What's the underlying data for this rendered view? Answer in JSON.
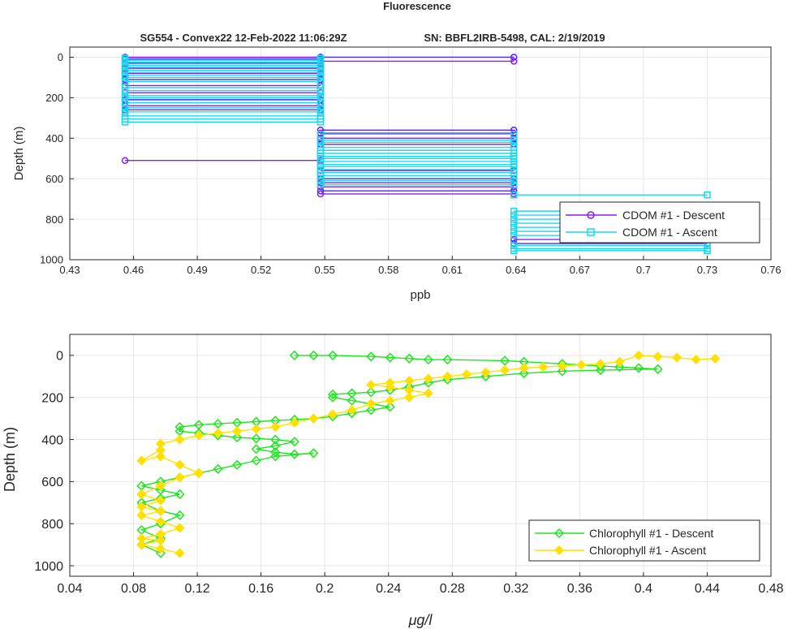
{
  "figure": {
    "title": "Fluorescence",
    "subtitle_left": "SG554 - Convex22 12-Feb-2022 11:06:29Z",
    "subtitle_right": "SN: BBFL2IRB-5498, CAL: 2/19/2019"
  },
  "colors": {
    "cdom_descent": "#8a1ee6",
    "cdom_descent_dark": "#4b26ff",
    "cdom_ascent": "#1ad7f0",
    "chl_descent": "#1ee61e",
    "chl_ascent": "#ffe100",
    "grid": "#e6e6e6",
    "axis": "#262626"
  },
  "chart_data": [
    {
      "type": "line",
      "xlabel": "ppb",
      "ylabel": "Depth (m)",
      "xlim": [
        0.43,
        0.76
      ],
      "ylim": [
        1000,
        -50
      ],
      "y_reversed": true,
      "grid": true,
      "xticks": [
        0.43,
        0.46,
        0.49,
        0.52,
        0.55,
        0.58,
        0.61,
        0.64,
        0.67,
        0.7,
        0.73,
        0.76
      ],
      "xtick_labels": [
        "0.43",
        "0.46",
        "0.49",
        "0.52",
        "0.55",
        "0.58",
        "0.61",
        "0.64",
        "0.67",
        "0.7",
        "0.73",
        "0.76"
      ],
      "yticks": [
        0,
        200,
        400,
        600,
        800,
        1000
      ],
      "ytick_labels": [
        "0",
        "200",
        "400",
        "600",
        "800",
        "1000"
      ],
      "legend_position": "lower-right",
      "series": [
        {
          "name": "CDOM #1 - Descent",
          "marker": "circle",
          "color_key": "cdom_descent",
          "segments": [
            [
              0.456,
              0,
              0.548,
              0
            ],
            [
              0.548,
              0,
              0.639,
              0
            ],
            [
              0.456,
              10,
              0.548,
              10
            ],
            [
              0.548,
              20,
              0.639,
              20
            ],
            [
              0.456,
              30,
              0.548,
              30
            ],
            [
              0.456,
              55,
              0.548,
              55
            ],
            [
              0.456,
              80,
              0.548,
              80
            ],
            [
              0.456,
              110,
              0.548,
              110
            ],
            [
              0.456,
              140,
              0.548,
              140
            ],
            [
              0.456,
              175,
              0.548,
              175
            ],
            [
              0.456,
              210,
              0.548,
              210
            ],
            [
              0.456,
              240,
              0.548,
              240
            ],
            [
              0.456,
              260,
              0.548,
              260
            ],
            [
              0.548,
              360,
              0.639,
              360
            ],
            [
              0.548,
              375,
              0.639,
              375
            ],
            [
              0.548,
              400,
              0.639,
              400
            ],
            [
              0.548,
              430,
              0.639,
              430
            ],
            [
              0.456,
              510,
              0.548,
              510
            ],
            [
              0.548,
              560,
              0.639,
              560
            ],
            [
              0.548,
              600,
              0.639,
              600
            ],
            [
              0.548,
              620,
              0.639,
              620
            ],
            [
              0.548,
              640,
              0.639,
              640
            ],
            [
              0.548,
              660,
              0.639,
              660
            ],
            [
              0.548,
              675,
              0.639,
              675
            ],
            [
              0.639,
              900,
              0.73,
              900
            ],
            [
              0.639,
              920,
              0.73,
              920
            ]
          ]
        },
        {
          "name": "CDOM #1 - Ascent",
          "marker": "square",
          "color_key": "cdom_ascent",
          "segments": [
            [
              0.456,
              5,
              0.548,
              5
            ],
            [
              0.456,
              15,
              0.548,
              15
            ],
            [
              0.456,
              25,
              0.548,
              25
            ],
            [
              0.456,
              40,
              0.548,
              40
            ],
            [
              0.456,
              50,
              0.548,
              50
            ],
            [
              0.456,
              65,
              0.548,
              65
            ],
            [
              0.456,
              75,
              0.548,
              75
            ],
            [
              0.456,
              90,
              0.548,
              90
            ],
            [
              0.456,
              100,
              0.548,
              100
            ],
            [
              0.456,
              120,
              0.548,
              120
            ],
            [
              0.456,
              150,
              0.548,
              150
            ],
            [
              0.456,
              165,
              0.548,
              165
            ],
            [
              0.456,
              190,
              0.548,
              190
            ],
            [
              0.456,
              200,
              0.548,
              200
            ],
            [
              0.456,
              225,
              0.548,
              225
            ],
            [
              0.456,
              250,
              0.548,
              250
            ],
            [
              0.456,
              270,
              0.548,
              270
            ],
            [
              0.456,
              290,
              0.548,
              290
            ],
            [
              0.456,
              305,
              0.548,
              305
            ],
            [
              0.456,
              320,
              0.548,
              320
            ],
            [
              0.548,
              380,
              0.639,
              380
            ],
            [
              0.548,
              410,
              0.639,
              410
            ],
            [
              0.548,
              420,
              0.639,
              420
            ],
            [
              0.548,
              445,
              0.639,
              445
            ],
            [
              0.548,
              460,
              0.639,
              460
            ],
            [
              0.548,
              475,
              0.639,
              475
            ],
            [
              0.548,
              490,
              0.639,
              490
            ],
            [
              0.548,
              500,
              0.639,
              500
            ],
            [
              0.548,
              515,
              0.639,
              515
            ],
            [
              0.548,
              530,
              0.639,
              530
            ],
            [
              0.548,
              540,
              0.639,
              540
            ],
            [
              0.548,
              555,
              0.639,
              555
            ],
            [
              0.548,
              570,
              0.639,
              570
            ],
            [
              0.548,
              585,
              0.639,
              585
            ],
            [
              0.548,
              610,
              0.639,
              610
            ],
            [
              0.548,
              630,
              0.639,
              630
            ],
            [
              0.639,
              680,
              0.73,
              680
            ],
            [
              0.639,
              760,
              0.73,
              760
            ],
            [
              0.639,
              780,
              0.73,
              780
            ],
            [
              0.639,
              800,
              0.73,
              800
            ],
            [
              0.639,
              820,
              0.73,
              820
            ],
            [
              0.639,
              840,
              0.73,
              840
            ],
            [
              0.639,
              860,
              0.73,
              860
            ],
            [
              0.639,
              880,
              0.73,
              880
            ],
            [
              0.639,
              930,
              0.73,
              930
            ],
            [
              0.639,
              945,
              0.73,
              945
            ],
            [
              0.639,
              955,
              0.73,
              955
            ]
          ]
        }
      ]
    },
    {
      "type": "line",
      "xlabel": "μg/l",
      "ylabel": "Depth (m)",
      "xlim": [
        0.04,
        0.48
      ],
      "ylim": [
        1050,
        -100
      ],
      "y_reversed": true,
      "grid": true,
      "xticks": [
        0.04,
        0.08,
        0.12,
        0.16,
        0.2,
        0.24,
        0.28,
        0.32,
        0.36,
        0.4,
        0.44,
        0.48
      ],
      "xtick_labels": [
        "0.04",
        "0.08",
        "0.12",
        "0.16",
        "0.2",
        "0.24",
        "0.28",
        "0.32",
        "0.36",
        "0.4",
        "0.44",
        "0.48"
      ],
      "yticks": [
        0,
        200,
        400,
        600,
        800,
        1000
      ],
      "ytick_labels": [
        "0",
        "200",
        "400",
        "600",
        "800",
        "1000"
      ],
      "legend_position": "lower-right",
      "series": [
        {
          "name": "Chlorophyll #1 - Descent",
          "marker": "diamond",
          "color_key": "chl_descent",
          "x": [
            0.181,
            0.193,
            0.205,
            0.229,
            0.241,
            0.253,
            0.265,
            0.277,
            0.313,
            0.325,
            0.349,
            0.373,
            0.385,
            0.397,
            0.409,
            0.373,
            0.349,
            0.325,
            0.301,
            0.277,
            0.265,
            0.253,
            0.241,
            0.229,
            0.217,
            0.205,
            0.205,
            0.217,
            0.229,
            0.241,
            0.229,
            0.217,
            0.205,
            0.193,
            0.181,
            0.169,
            0.157,
            0.145,
            0.133,
            0.121,
            0.109,
            0.109,
            0.121,
            0.133,
            0.145,
            0.157,
            0.169,
            0.181,
            0.169,
            0.157,
            0.169,
            0.181,
            0.193,
            0.169,
            0.157,
            0.145,
            0.133,
            0.121,
            0.109,
            0.097,
            0.085,
            0.097,
            0.109,
            0.097,
            0.085,
            0.097,
            0.109,
            0.097,
            0.085,
            0.097,
            0.085,
            0.097
          ],
          "y": [
            0,
            0,
            0,
            5,
            10,
            15,
            20,
            20,
            25,
            30,
            40,
            50,
            55,
            60,
            65,
            70,
            75,
            85,
            100,
            115,
            130,
            150,
            165,
            175,
            180,
            185,
            200,
            215,
            230,
            245,
            260,
            275,
            290,
            300,
            305,
            310,
            315,
            320,
            325,
            330,
            340,
            360,
            370,
            380,
            390,
            395,
            400,
            410,
            430,
            445,
            460,
            470,
            465,
            480,
            500,
            520,
            540,
            560,
            580,
            600,
            620,
            640,
            660,
            680,
            700,
            740,
            760,
            800,
            830,
            870,
            900,
            940
          ]
        },
        {
          "name": "Chlorophyll #1 - Ascent",
          "marker": "filled-diamond",
          "color_key": "chl_ascent",
          "x": [
            0.445,
            0.433,
            0.421,
            0.409,
            0.397,
            0.385,
            0.373,
            0.361,
            0.349,
            0.337,
            0.325,
            0.313,
            0.301,
            0.289,
            0.277,
            0.265,
            0.253,
            0.241,
            0.229,
            0.241,
            0.253,
            0.265,
            0.253,
            0.241,
            0.229,
            0.217,
            0.205,
            0.193,
            0.181,
            0.169,
            0.157,
            0.145,
            0.133,
            0.121,
            0.109,
            0.097,
            0.097,
            0.085,
            0.097,
            0.109,
            0.121,
            0.109,
            0.097,
            0.085,
            0.097,
            0.085,
            0.097,
            0.085,
            0.097,
            0.109,
            0.097,
            0.085,
            0.097,
            0.085,
            0.097,
            0.109
          ],
          "y": [
            15,
            20,
            10,
            5,
            0,
            30,
            40,
            45,
            50,
            55,
            60,
            70,
            80,
            90,
            100,
            110,
            120,
            130,
            140,
            150,
            165,
            180,
            200,
            215,
            230,
            260,
            280,
            300,
            320,
            340,
            350,
            360,
            370,
            380,
            400,
            420,
            450,
            500,
            480,
            520,
            560,
            580,
            620,
            660,
            690,
            720,
            740,
            760,
            790,
            820,
            850,
            870,
            880,
            900,
            920,
            940
          ]
        }
      ]
    }
  ]
}
